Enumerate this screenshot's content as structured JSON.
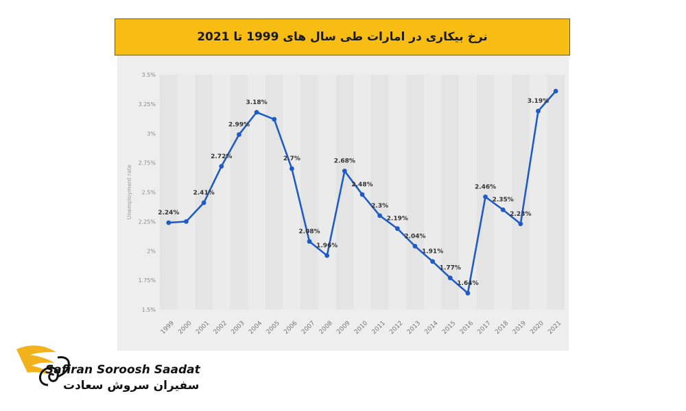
{
  "title": "نرخ بیکاری در امارات طی سال های 1999 تا 2021",
  "brand": {
    "name_en": "Safiran Soroosh Saadat",
    "name_fa": "سفیران سروش سعادت",
    "accent": "#f2b21b"
  },
  "chart_data": {
    "type": "line",
    "categories": [
      "1999",
      "2000",
      "2001",
      "2002",
      "2003",
      "2004",
      "2005",
      "2006",
      "2007",
      "2008",
      "2009",
      "2010",
      "2011",
      "2012",
      "2013",
      "2014",
      "2015",
      "2016",
      "2017",
      "2018",
      "2019",
      "2020",
      "2021"
    ],
    "values": [
      2.24,
      2.25,
      2.41,
      2.72,
      2.99,
      3.18,
      3.12,
      2.7,
      2.08,
      1.96,
      2.68,
      2.48,
      2.3,
      2.19,
      2.04,
      1.91,
      1.77,
      1.64,
      2.46,
      2.35,
      2.23,
      3.19,
      3.36
    ],
    "data_labels": [
      "2.24%",
      "",
      "2.41%",
      "2.72%",
      "2.99%",
      "3.18%",
      "",
      "2.7%",
      "2.08%",
      "1.96%",
      "2.68%",
      "2.48%",
      "2.3%",
      "2.19%",
      "2.04%",
      "1.91%",
      "1.77%",
      "1.64%",
      "2.46%",
      "2.35%",
      "2.23%",
      "3.19%",
      ""
    ],
    "y_ticks": [
      "1.5%",
      "1.75%",
      "2%",
      "2.25%",
      "2.5%",
      "2.75%",
      "3%",
      "3.25%",
      "3.5%"
    ],
    "y_tick_values": [
      1.5,
      1.75,
      2.0,
      2.25,
      2.5,
      2.75,
      3.0,
      3.25,
      3.5
    ],
    "ylabel": "Unemployment rate",
    "ylim": [
      1.5,
      3.5
    ],
    "grid": "vertical-bands",
    "line_color": "#1f5bc4"
  }
}
